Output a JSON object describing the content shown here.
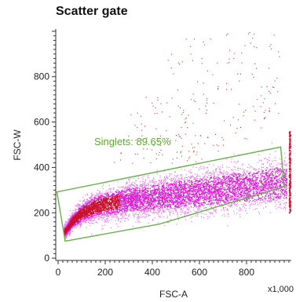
{
  "chart_data": {
    "type": "scatter",
    "title": "Scatter gate",
    "xlabel": "FSC-A",
    "ylabel": "FSC-W",
    "x_multiplier_label": "x1,000",
    "xlim": [
      -10,
      990
    ],
    "ylim": [
      -10,
      1010
    ],
    "xticks": [
      0,
      200,
      400,
      600,
      800
    ],
    "yticks": [
      0,
      200,
      400,
      600,
      800
    ],
    "grid": false,
    "colors": {
      "density_high": "#c8102e",
      "density_mid": "#d61fd0",
      "density_low": "#e87be8",
      "sparse": "#c0392b",
      "gate": "#6ab04c",
      "gate_label": "#5aa832"
    },
    "gate": {
      "name": "Singlets",
      "percent": "89.65%",
      "label": "Singlets: 89.65%",
      "polygon": [
        [
          -5,
          292
        ],
        [
          945,
          490
        ],
        [
          960,
          315
        ],
        [
          430,
          150
        ],
        [
          30,
          75
        ]
      ]
    },
    "population": {
      "approx_events": 8000,
      "trend_points": [
        [
          30,
          120
        ],
        [
          60,
          165
        ],
        [
          100,
          200
        ],
        [
          150,
          225
        ],
        [
          200,
          240
        ],
        [
          300,
          258
        ],
        [
          400,
          270
        ],
        [
          500,
          282
        ],
        [
          600,
          293
        ],
        [
          700,
          305
        ],
        [
          800,
          315
        ],
        [
          900,
          328
        ],
        [
          960,
          335
        ]
      ],
      "spread_fsc_w": [
        25,
        35,
        45,
        55,
        60,
        65,
        70,
        75,
        80,
        82,
        85,
        88,
        90
      ],
      "pile_up_x": 985,
      "pile_up_y_range": [
        200,
        560
      ]
    }
  }
}
